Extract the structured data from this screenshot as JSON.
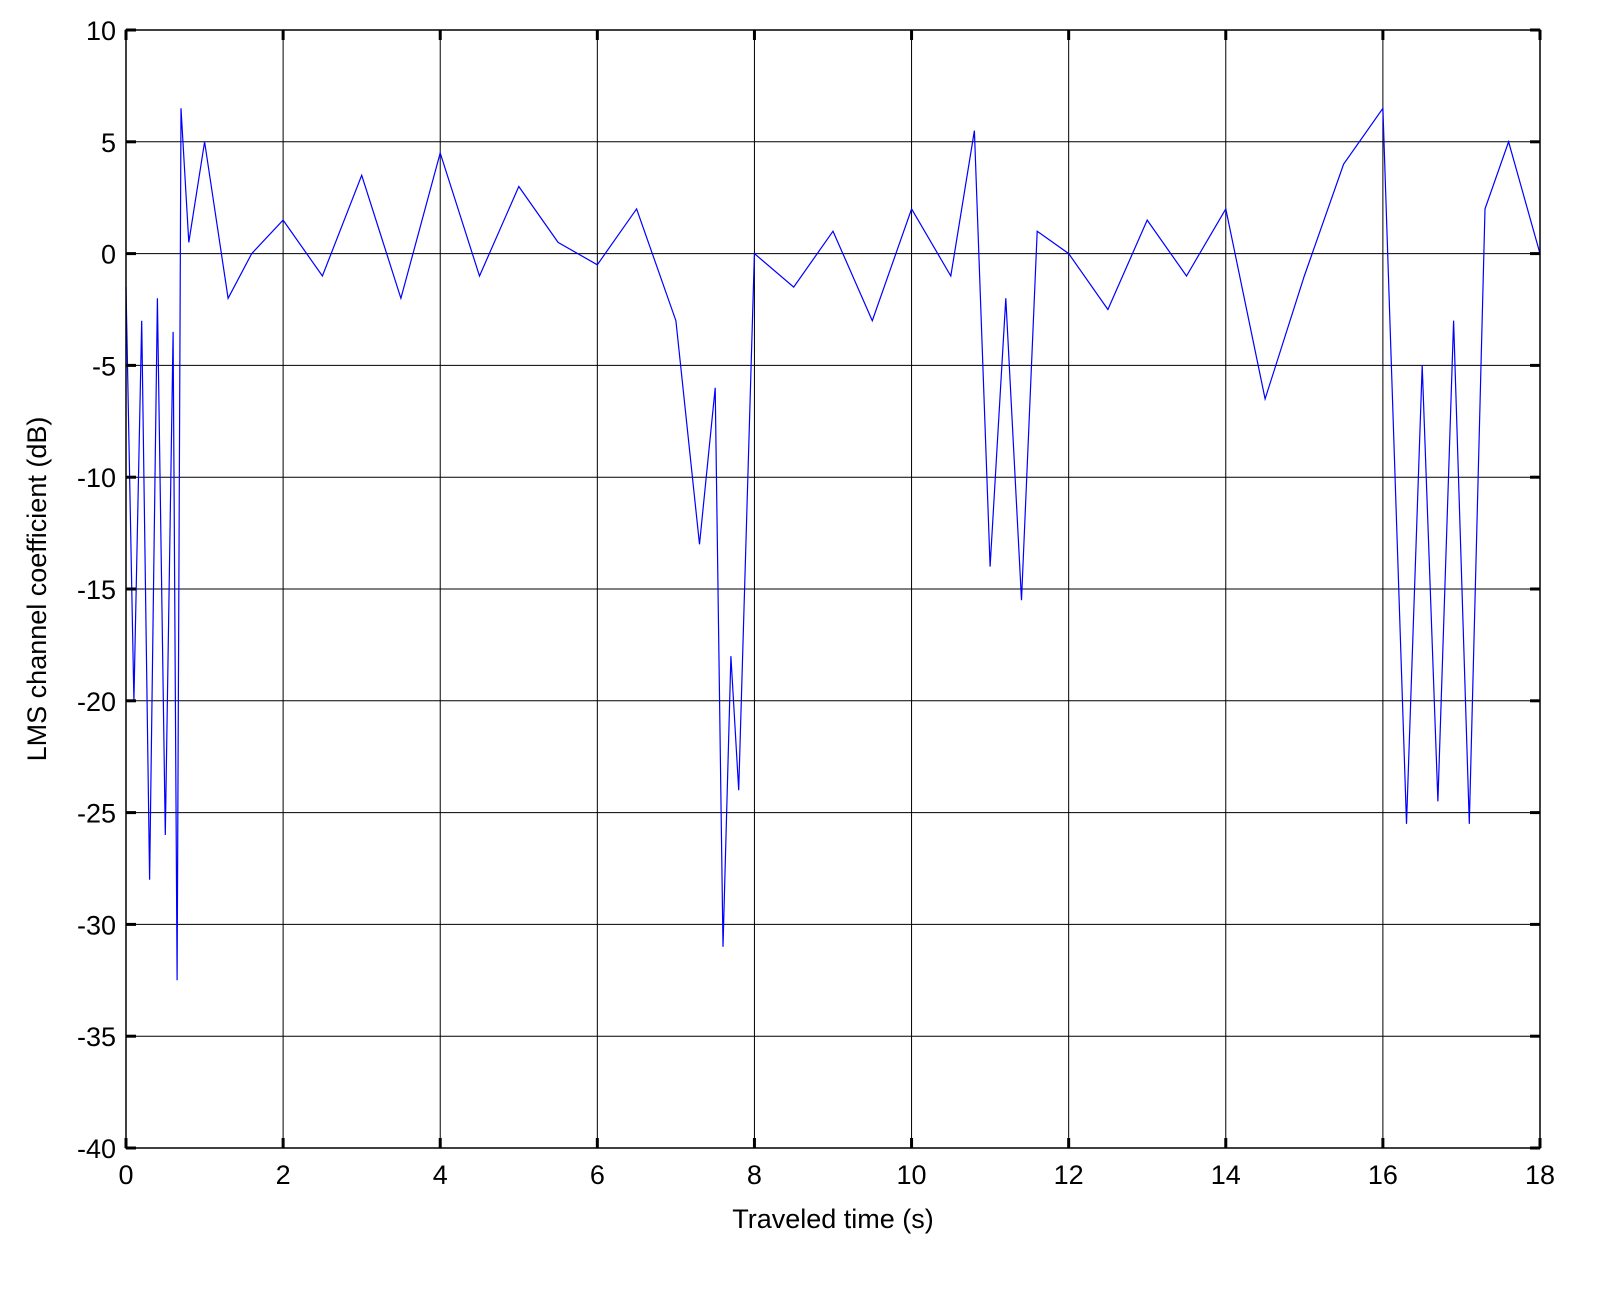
{
  "chart_data": {
    "type": "line",
    "title": "",
    "xlabel": "Traveled time (s)",
    "ylabel": "LMS channel coefficient (dB)",
    "xlim": [
      0,
      18
    ],
    "ylim": [
      -40,
      10
    ],
    "x_ticks": [
      0,
      2,
      4,
      6,
      8,
      10,
      12,
      14,
      16,
      18
    ],
    "y_ticks": [
      10,
      5,
      0,
      -5,
      -10,
      -15,
      -20,
      -25,
      -30,
      -35,
      -40
    ],
    "x_tick_labels": [
      "0",
      "2",
      "4",
      "6",
      "8",
      "10",
      "12",
      "14",
      "16",
      "18"
    ],
    "y_tick_labels": [
      "10",
      "5",
      "0",
      "-5",
      "-10",
      "-15",
      "-20",
      "-25",
      "-30",
      "-35",
      "-40"
    ],
    "grid": true,
    "legend": "none",
    "series_color": "#0000ff",
    "series": [
      {
        "x": [
          0.0,
          0.1,
          0.2,
          0.3,
          0.4,
          0.5,
          0.6,
          0.65,
          0.7,
          0.8,
          1.0,
          1.3,
          1.6,
          2.0,
          2.5,
          3.0,
          3.5,
          4.0,
          4.5,
          5.0,
          5.5,
          6.0,
          6.5,
          7.0,
          7.3,
          7.5,
          7.6,
          7.7,
          7.8,
          8.0,
          8.5,
          9.0,
          9.5,
          10.0,
          10.5,
          10.8,
          11.0,
          11.2,
          11.4,
          11.6,
          12.0,
          12.5,
          13.0,
          13.5,
          14.0,
          14.5,
          15.0,
          15.5,
          16.0,
          16.3,
          16.5,
          16.7,
          16.9,
          17.1,
          17.3,
          17.6,
          18.0
        ],
        "y": [
          -1.5,
          -20.0,
          -3.0,
          -28.0,
          -2.0,
          -26.0,
          -3.5,
          -32.5,
          6.5,
          0.5,
          5.0,
          -2.0,
          0.0,
          1.5,
          -1.0,
          3.5,
          -2.0,
          4.5,
          -1.0,
          3.0,
          0.5,
          -0.5,
          2.0,
          -3.0,
          -13.0,
          -6.0,
          -31.0,
          -18.0,
          -24.0,
          0.0,
          -1.5,
          1.0,
          -3.0,
          2.0,
          -1.0,
          5.5,
          -14.0,
          -2.0,
          -15.5,
          1.0,
          0.0,
          -2.5,
          1.5,
          -1.0,
          2.0,
          -6.5,
          -1.0,
          4.0,
          6.5,
          -25.5,
          -5.0,
          -24.5,
          -3.0,
          -25.5,
          2.0,
          5.0,
          0.0
        ]
      }
    ]
  }
}
